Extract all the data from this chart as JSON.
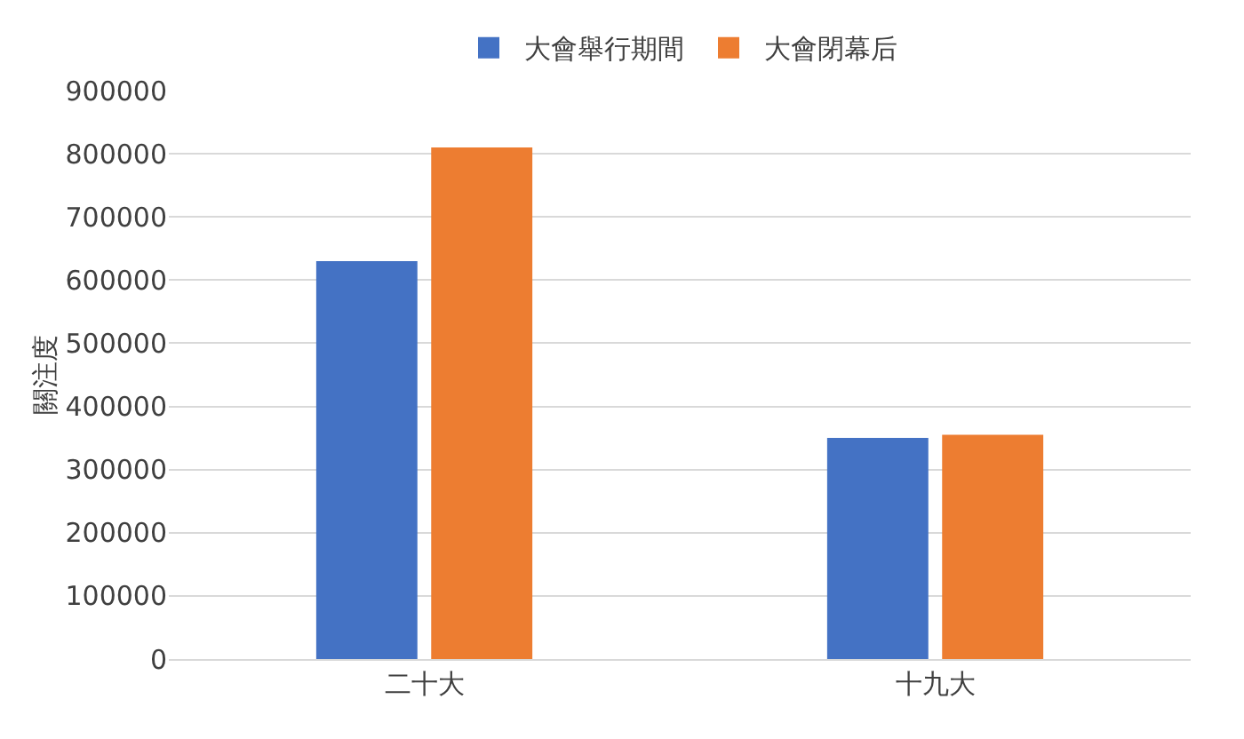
{
  "chart_data": {
    "type": "bar",
    "ylabel": "關注度",
    "categories": [
      "二十大",
      "十九大"
    ],
    "series": [
      {
        "name": "大會舉行期間",
        "color": "#4472c4",
        "values": [
          630000,
          350000
        ]
      },
      {
        "name": "大會閉幕后",
        "color": "#ed7d31",
        "values": [
          810000,
          355000
        ]
      }
    ],
    "ylim": [
      0,
      900000
    ],
    "yticks": [
      0,
      100000,
      200000,
      300000,
      400000,
      500000,
      600000,
      700000,
      800000,
      900000
    ],
    "grid": "y",
    "legend": "top"
  }
}
